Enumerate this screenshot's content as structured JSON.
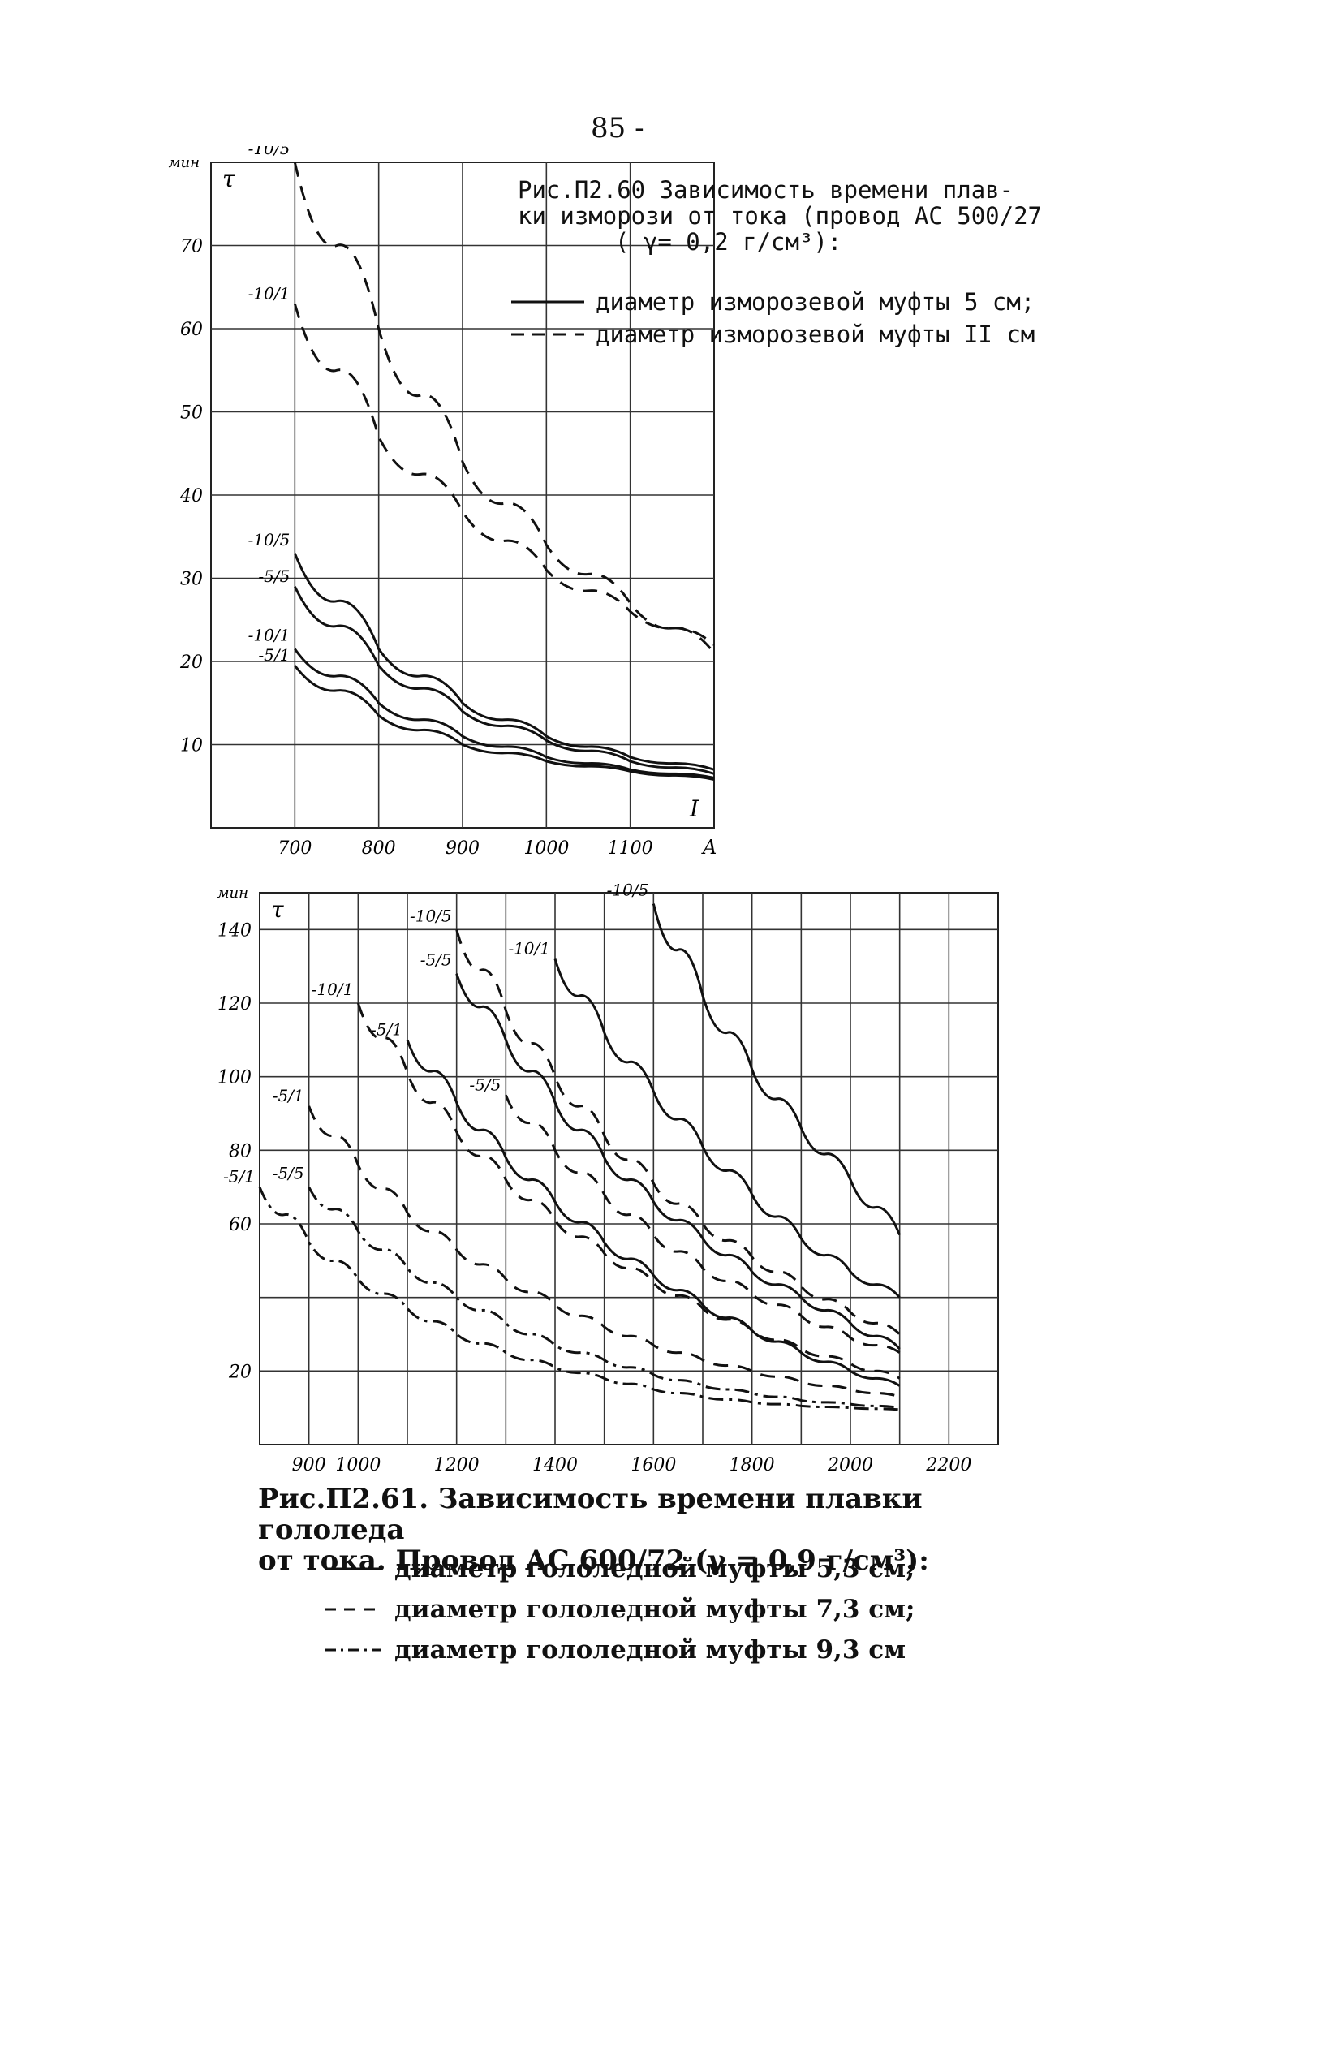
{
  "page_number": "85 -",
  "figure1": {
    "caption_lines": [
      "Рис.П2.60 Зависимость времени плав-",
      "ки изморози от тока (провод АС 500/27",
      "( γ= 0,2 г/см³):"
    ],
    "legend": [
      {
        "style": "solid",
        "label": "диаметр изморозевой муфты 5 см;"
      },
      {
        "style": "dashed",
        "label": "диаметр изморозевой муфты II см"
      }
    ]
  },
  "figure2": {
    "caption_lines": [
      "Рис.П2.61. Зависимость времени плавки гололеда",
      "от тока. Провод АС 600/72 (γ = 0,9 г/см³):"
    ],
    "legend": [
      {
        "style": "solid",
        "label": "диаметр гололедной муфты 5,3 см;"
      },
      {
        "style": "dashed",
        "label": "диаметр гололедной муфты 7,3 см;"
      },
      {
        "style": "dashdot",
        "label": "диаметр гололедной муфты 9,3 см"
      }
    ]
  },
  "chart_data": [
    {
      "type": "line",
      "ylabel_unit": "мин",
      "ylabel": "τ",
      "xlabel": "I",
      "xlabel_unit": "A",
      "xlim": [
        600,
        1200
      ],
      "ylim": [
        0,
        80
      ],
      "x_ticks": [
        700,
        800,
        900,
        1000,
        1100
      ],
      "x_tick_labels": [
        "700",
        "800",
        "900",
        "1000",
        "1100"
      ],
      "y_ticks": [
        10,
        20,
        30,
        40,
        50,
        60,
        70
      ],
      "y_tick_labels": [
        "10",
        "20",
        "30",
        "40",
        "50",
        "60",
        "70"
      ],
      "grid": true,
      "series": [
        {
          "name": "-10/5",
          "style": "dashed",
          "x": [
            700,
            800,
            900,
            1000,
            1100,
            1200
          ],
          "y": [
            80,
            60,
            44,
            34,
            27,
            21
          ]
        },
        {
          "name": "-10/1",
          "style": "dashed",
          "x": [
            700,
            800,
            900,
            1000,
            1100,
            1200
          ],
          "y": [
            63,
            47,
            38,
            31,
            26,
            22
          ]
        },
        {
          "name": "-10/5",
          "style": "solid",
          "x": [
            700,
            800,
            900,
            1000,
            1100,
            1200
          ],
          "y": [
            33,
            21.5,
            15,
            11,
            8.5,
            7
          ]
        },
        {
          "name": "-5/5",
          "style": "solid",
          "x": [
            700,
            800,
            900,
            1000,
            1100,
            1200
          ],
          "y": [
            29,
            19.5,
            14,
            10.5,
            8,
            6.5
          ]
        },
        {
          "name": "-10/1",
          "style": "solid",
          "x": [
            700,
            800,
            900,
            1000,
            1100,
            1200
          ],
          "y": [
            21.5,
            15,
            11,
            8.5,
            7,
            6
          ]
        },
        {
          "name": "-5/1",
          "style": "solid",
          "x": [
            700,
            800,
            900,
            1000,
            1100,
            1200
          ],
          "y": [
            19.5,
            13.5,
            10,
            8,
            6.8,
            5.8
          ]
        }
      ]
    },
    {
      "type": "line",
      "ylabel_unit": "мин",
      "ylabel": "τ",
      "xlim": [
        800,
        2300
      ],
      "ylim": [
        0,
        150
      ],
      "x_ticks": [
        900,
        1000,
        1100,
        1200,
        1300,
        1400,
        1500,
        1600,
        1700,
        1800,
        1900,
        2000,
        2100,
        2200
      ],
      "x_tick_labels": [
        "900",
        "1000",
        "",
        "1200",
        "",
        "1400",
        "",
        "1600",
        "",
        "1800",
        "",
        "2000",
        "",
        "2200"
      ],
      "y_ticks": [
        20,
        40,
        60,
        80,
        100,
        120,
        140
      ],
      "y_tick_labels": [
        "20",
        "",
        "60",
        "80",
        "100",
        "120",
        "140"
      ],
      "grid": true,
      "series": [
        {
          "name": "-10/5",
          "style": "solid",
          "x": [
            1600,
            1700,
            1800,
            1900,
            2000,
            2100
          ],
          "y": [
            147,
            122,
            102,
            86,
            72,
            57
          ]
        },
        {
          "name": "-10/1",
          "style": "solid",
          "x": [
            1400,
            1500,
            1600,
            1700,
            1800,
            1900,
            2000,
            2100
          ],
          "y": [
            132,
            112,
            96,
            81,
            68,
            56,
            47,
            40
          ]
        },
        {
          "name": "-5/5",
          "style": "solid",
          "x": [
            1200,
            1300,
            1400,
            1500,
            1600,
            1700,
            1800,
            1900,
            2000,
            2100
          ],
          "y": [
            128,
            110,
            93,
            78,
            66,
            56,
            47,
            40,
            33,
            26
          ]
        },
        {
          "name": "-5/1",
          "style": "solid",
          "x": [
            1100,
            1200,
            1300,
            1400,
            1500,
            1600,
            1700,
            1800,
            1900,
            2000,
            2100
          ],
          "y": [
            110,
            93,
            78,
            66,
            55,
            46,
            38,
            31,
            25,
            20,
            16
          ]
        },
        {
          "name": "-10/1",
          "style": "dashed",
          "x": [
            1000,
            1100,
            1200,
            1300,
            1400,
            1500,
            1600,
            1700,
            1800,
            1900,
            2000,
            2100
          ],
          "y": [
            120,
            101,
            85,
            72,
            61,
            52,
            44,
            37,
            31,
            26,
            22,
            18
          ]
        },
        {
          "name": "-5/5",
          "style": "dashed",
          "x": [
            1300,
            1400,
            1500,
            1600,
            1700,
            1800,
            1900,
            2000,
            2100
          ],
          "y": [
            95,
            80,
            68,
            57,
            48,
            41,
            35,
            29,
            25
          ]
        },
        {
          "name": "-10/5",
          "style": "dashed",
          "x": [
            1200,
            1300,
            1400,
            1500,
            1600,
            1700,
            1800,
            1900,
            2000,
            2100
          ],
          "y": [
            140,
            118,
            100,
            84,
            71,
            60,
            51,
            43,
            36,
            30
          ]
        },
        {
          "name": "-5/1",
          "style": "dashed",
          "x": [
            900,
            1000,
            1100,
            1200,
            1300,
            1400,
            1500,
            1600,
            1700,
            1800,
            1900,
            2000,
            2100
          ],
          "y": [
            92,
            76,
            63,
            53,
            45,
            38,
            32,
            27,
            23,
            20,
            17,
            15,
            13
          ]
        },
        {
          "name": "-5/5",
          "style": "dashdot",
          "x": [
            900,
            1000,
            1100,
            1200,
            1300,
            1400,
            1500,
            1600,
            1700,
            1800,
            1900,
            2000,
            2100
          ],
          "y": [
            70,
            58,
            48,
            40,
            33,
            27,
            23,
            19,
            16,
            14,
            12,
            11,
            10
          ]
        },
        {
          "name": "-5/1",
          "style": "dashdot",
          "x": [
            800,
            900,
            1000,
            1100,
            1200,
            1300,
            1400,
            1500,
            1600,
            1700,
            1800,
            1900,
            2000,
            2100
          ],
          "y": [
            70,
            55,
            45,
            37,
            30,
            25,
            21,
            18,
            15,
            13,
            11.5,
            10.5,
            10,
            9.5
          ]
        }
      ]
    }
  ]
}
